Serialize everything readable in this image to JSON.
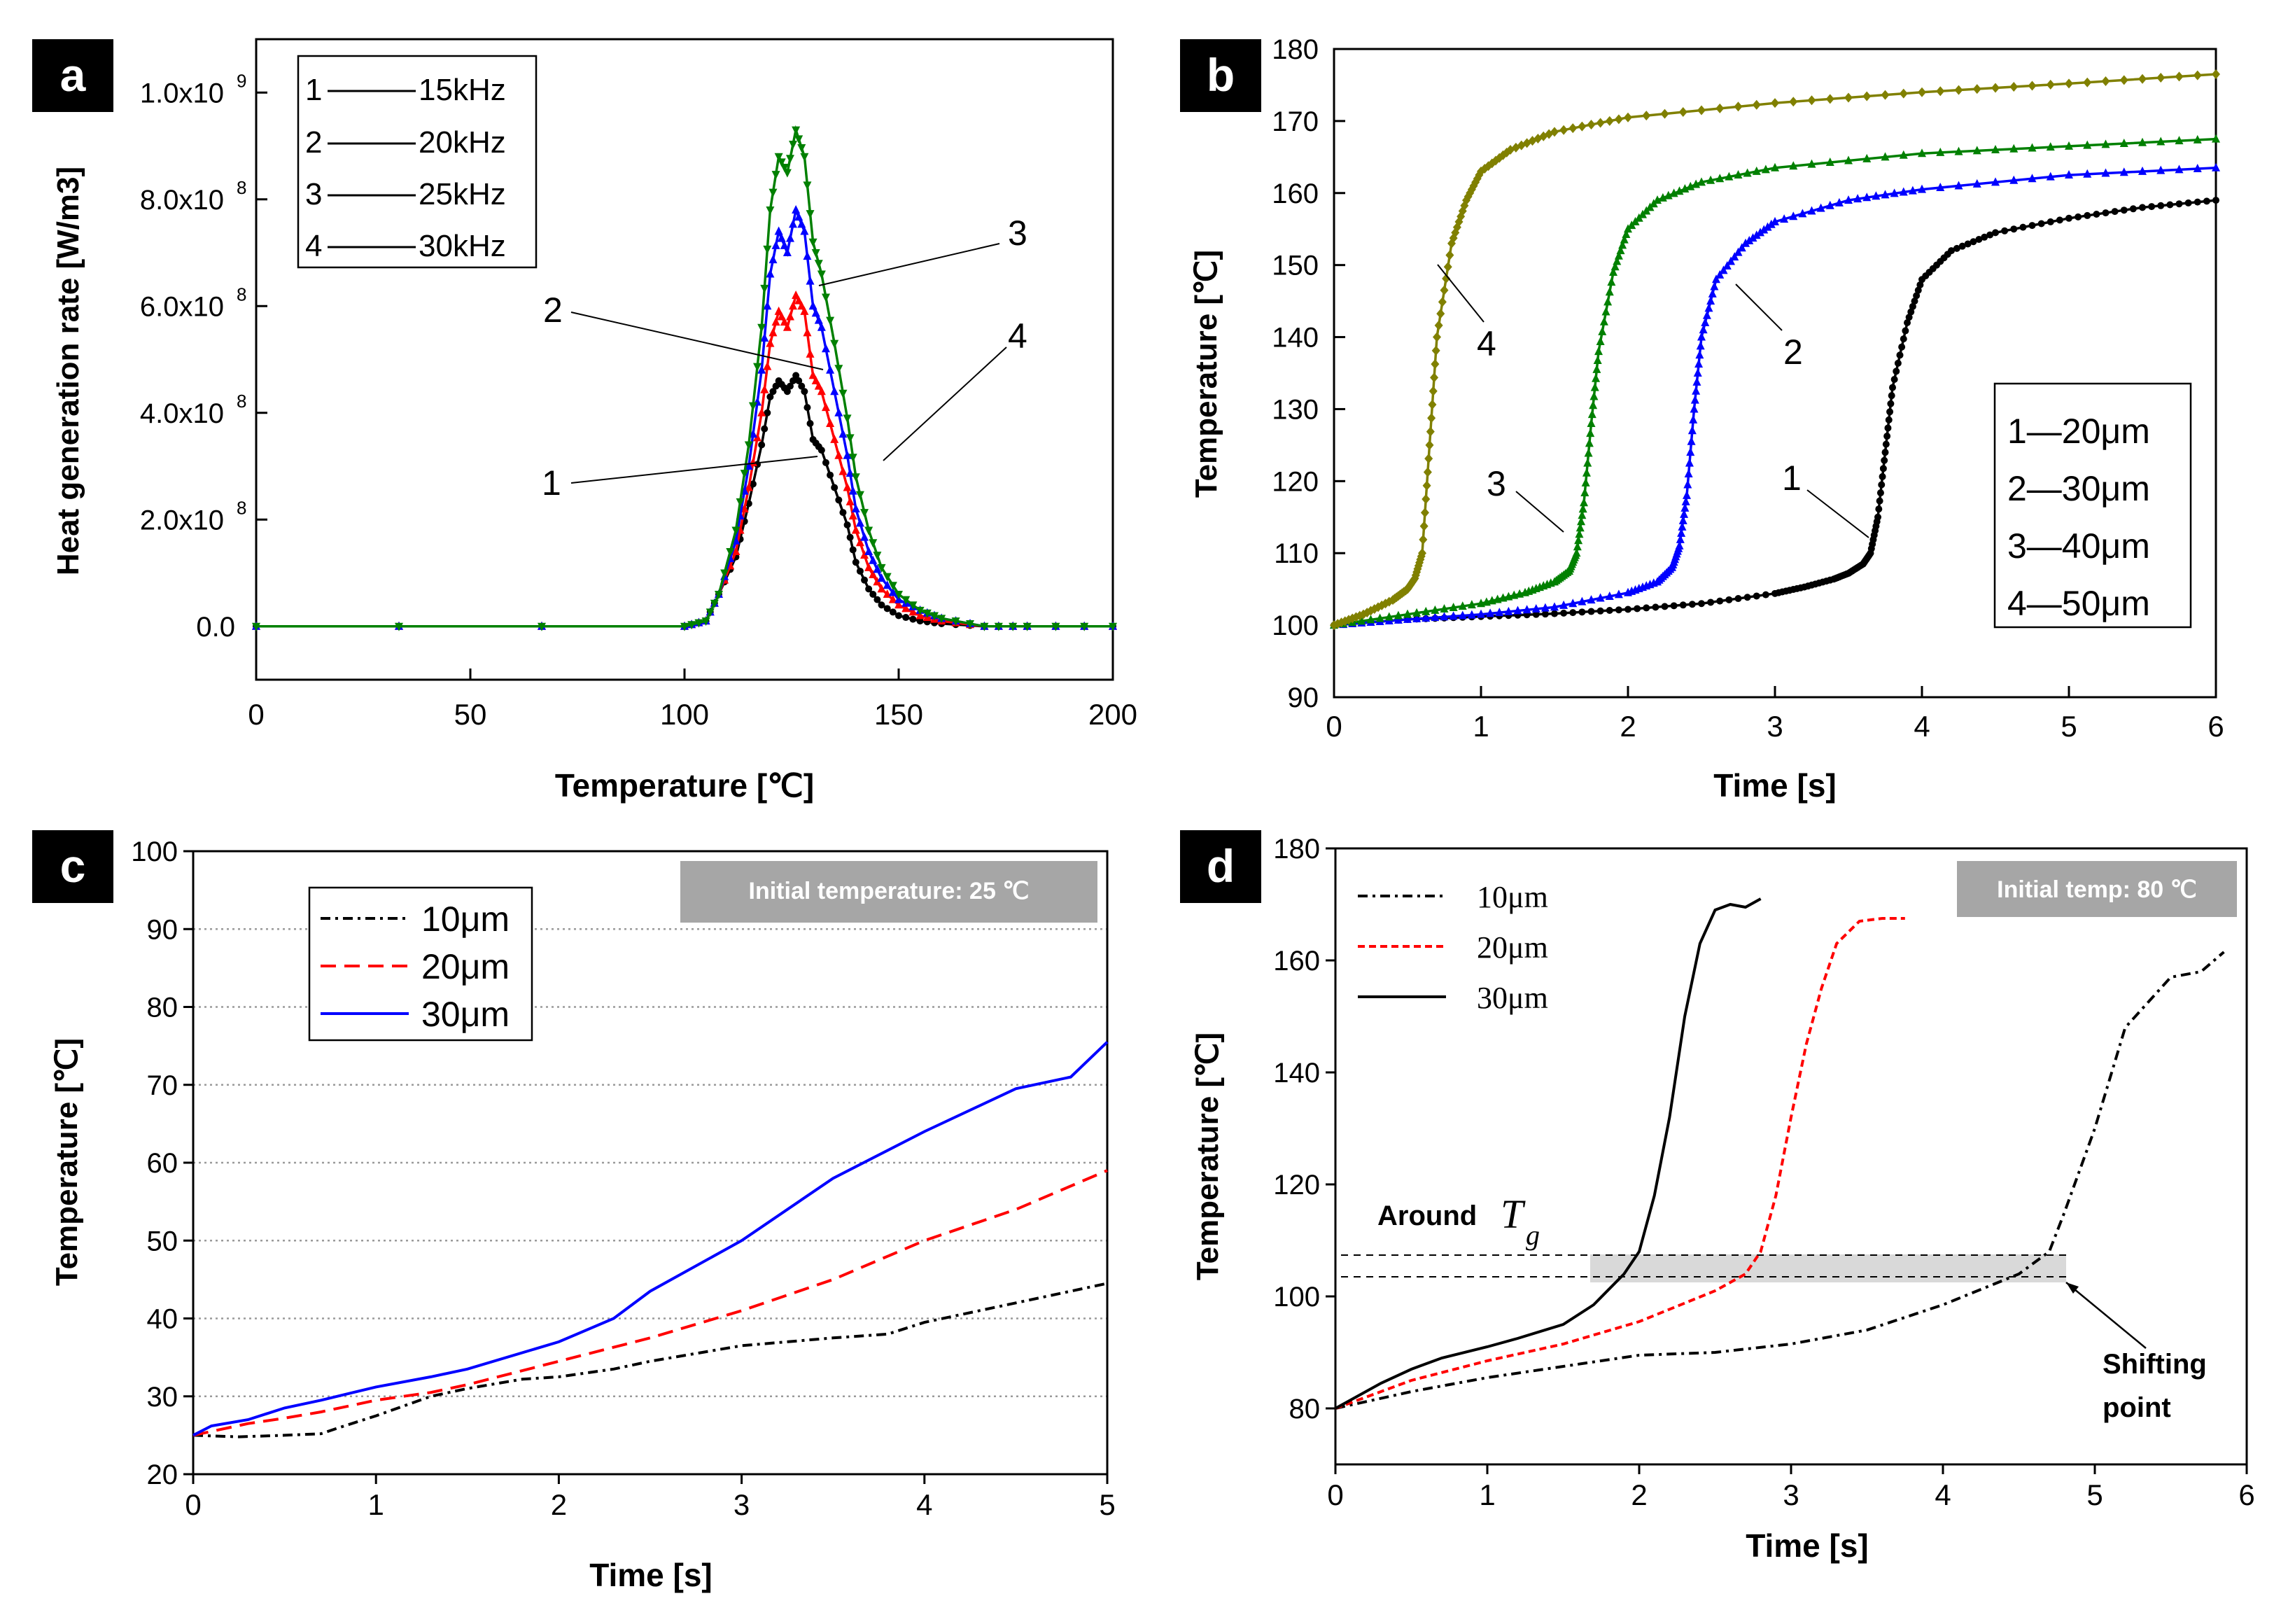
{
  "charts": [
    {
      "panel_label": "a",
      "type": "line",
      "xlabel": "Temperature [℃]",
      "ylabel": "Heat generation rate [W/m3]",
      "xlim": [
        0,
        200
      ],
      "ylim": [
        -100000000.0,
        1100000000.0
      ],
      "xticks": [
        "0",
        "50",
        "100",
        "150",
        "200"
      ],
      "yticks": [
        "0.0",
        "2.0x10",
        "4.0x10",
        "6.0x10",
        "8.0x10",
        "1.0x10"
      ],
      "ytick_exp": "8",
      "ytick_exp_top": "9",
      "legend": [
        {
          "num": "1",
          "label": "15kHz"
        },
        {
          "num": "2",
          "label": "20kHz"
        },
        {
          "num": "3",
          "label": "25kHz"
        },
        {
          "num": "4",
          "label": "30kHz"
        }
      ],
      "annotations": [
        "1",
        "2",
        "3",
        "4"
      ],
      "series_colors": [
        "#000000",
        "#ff0000",
        "#0000ff",
        "#008000"
      ]
    },
    {
      "panel_label": "b",
      "type": "line",
      "xlabel": "Time [s]",
      "ylabel": "Temperature [℃]",
      "xlim": [
        0,
        6
      ],
      "ylim": [
        90,
        180
      ],
      "xticks": [
        "0",
        "1",
        "2",
        "3",
        "4",
        "5",
        "6"
      ],
      "yticks": [
        "90",
        "100",
        "110",
        "120",
        "130",
        "140",
        "150",
        "160",
        "170",
        "180"
      ],
      "legend": [
        "1—20μm",
        "2—30μm",
        "3—40μm",
        "4—50μm"
      ],
      "annotations": [
        "1",
        "2",
        "3",
        "4"
      ],
      "series_colors": [
        "#000000",
        "#0000ff",
        "#008000",
        "#808000"
      ]
    },
    {
      "panel_label": "c",
      "type": "line",
      "xlabel": "Time [s]",
      "ylabel": "Temperature [℃]",
      "xlim": [
        0,
        5
      ],
      "ylim": [
        20,
        100
      ],
      "xticks": [
        "0",
        "1",
        "2",
        "3",
        "4",
        "5"
      ],
      "yticks": [
        "20",
        "30",
        "40",
        "50",
        "60",
        "70",
        "80",
        "90",
        "100"
      ],
      "legend": [
        "10μm",
        "20μm",
        "30μm"
      ],
      "info_box": "Initial temperature: 25 ℃",
      "series_colors": [
        "#000000",
        "#ff0000",
        "#0000ff"
      ]
    },
    {
      "panel_label": "d",
      "type": "line",
      "xlabel": "Time [s]",
      "ylabel": "Temperature [℃]",
      "xlim": [
        0,
        6
      ],
      "ylim": [
        70,
        180
      ],
      "xticks": [
        "0",
        "1",
        "2",
        "3",
        "4",
        "5",
        "6"
      ],
      "yticks": [
        "80",
        "100",
        "120",
        "140",
        "160",
        "180"
      ],
      "legend": [
        "10μm",
        "20μm",
        "30μm"
      ],
      "info_box": "Initial temp: 80 ℃",
      "tg_label_prefix": "Around",
      "tg_symbol": "T",
      "tg_subscript": "g",
      "shift_label_line1": "Shifting",
      "shift_label_line2": "point",
      "series_colors": [
        "#000000",
        "#ff0000",
        "#000000"
      ]
    }
  ],
  "chart_data": [
    {
      "panel": "a",
      "type": "line",
      "title": "",
      "xlabel": "Temperature [℃]",
      "ylabel": "Heat generation rate [W/m3]",
      "xlim": [
        0,
        200
      ],
      "ylim": [
        -100000000.0,
        1100000000.0
      ],
      "series": [
        {
          "name": "15kHz",
          "x": [
            0,
            100,
            105,
            108,
            112,
            115,
            118,
            120,
            122,
            124,
            126,
            128,
            130,
            132,
            135,
            138,
            140,
            143,
            146,
            150,
            155,
            160,
            170,
            180,
            200
          ],
          "values": [
            0,
            0,
            10000000.0,
            60000000.0,
            130000000.0,
            230000000.0,
            340000000.0,
            430000000.0,
            460000000.0,
            440000000.0,
            470000000.0,
            440000000.0,
            350000000.0,
            330000000.0,
            260000000.0,
            190000000.0,
            120000000.0,
            70000000.0,
            40000000.0,
            20000000.0,
            10000000.0,
            5000000.0,
            0,
            0,
            0
          ]
        },
        {
          "name": "20kHz",
          "x": [
            0,
            100,
            105,
            108,
            112,
            115,
            118,
            120,
            122,
            124,
            126,
            128,
            130,
            132,
            135,
            138,
            140,
            143,
            146,
            150,
            155,
            160,
            170,
            180,
            200
          ],
          "values": [
            0,
            0,
            10000000.0,
            60000000.0,
            140000000.0,
            260000000.0,
            400000000.0,
            530000000.0,
            590000000.0,
            560000000.0,
            620000000.0,
            590000000.0,
            470000000.0,
            440000000.0,
            350000000.0,
            260000000.0,
            180000000.0,
            110000000.0,
            70000000.0,
            40000000.0,
            20000000.0,
            10000000.0,
            0,
            0,
            0
          ]
        },
        {
          "name": "25kHz",
          "x": [
            0,
            100,
            105,
            108,
            112,
            115,
            118,
            120,
            122,
            124,
            126,
            128,
            130,
            132,
            135,
            138,
            140,
            143,
            146,
            150,
            155,
            160,
            170,
            180,
            200
          ],
          "values": [
            0,
            0,
            10000000.0,
            60000000.0,
            160000000.0,
            300000000.0,
            480000000.0,
            660000000.0,
            740000000.0,
            700000000.0,
            780000000.0,
            740000000.0,
            600000000.0,
            560000000.0,
            440000000.0,
            320000000.0,
            220000000.0,
            140000000.0,
            90000000.0,
            50000000.0,
            30000000.0,
            15000000.0,
            0,
            0,
            0
          ]
        },
        {
          "name": "30kHz",
          "x": [
            0,
            100,
            105,
            108,
            112,
            115,
            118,
            120,
            122,
            124,
            126,
            128,
            130,
            132,
            135,
            138,
            140,
            143,
            146,
            150,
            155,
            160,
            170,
            180,
            200
          ],
          "values": [
            0,
            0,
            10000000.0,
            60000000.0,
            180000000.0,
            340000000.0,
            560000000.0,
            780000000.0,
            880000000.0,
            850000000.0,
            930000000.0,
            880000000.0,
            720000000.0,
            660000000.0,
            530000000.0,
            390000000.0,
            280000000.0,
            180000000.0,
            110000000.0,
            60000000.0,
            30000000.0,
            15000000.0,
            0,
            0,
            0
          ]
        }
      ]
    },
    {
      "panel": "b",
      "type": "line",
      "title": "",
      "xlabel": "Time [s]",
      "ylabel": "Temperature [℃]",
      "xlim": [
        0,
        6
      ],
      "ylim": [
        90,
        180
      ],
      "series": [
        {
          "name": "1—20μm",
          "x": [
            0,
            0.5,
            1,
            1.5,
            2,
            2.5,
            3,
            3.2,
            3.4,
            3.5,
            3.6,
            3.65,
            3.7,
            3.75,
            3.8,
            3.9,
            4,
            4.2,
            4.5,
            5,
            5.5,
            6
          ],
          "values": [
            100,
            100.8,
            101.2,
            101.6,
            102.2,
            103,
            104.4,
            105.3,
            106.4,
            107.2,
            108.5,
            110,
            115,
            124,
            133,
            142,
            148,
            152,
            154.5,
            156.5,
            158,
            159
          ]
        },
        {
          "name": "2—30μm",
          "x": [
            0,
            0.5,
            1,
            1.5,
            2,
            2.2,
            2.3,
            2.35,
            2.4,
            2.45,
            2.5,
            2.6,
            2.8,
            3,
            3.5,
            4,
            5,
            6
          ],
          "values": [
            100,
            100.8,
            101.5,
            102.5,
            104.5,
            106,
            108,
            111,
            118,
            130,
            140,
            148,
            153,
            156,
            159,
            160.5,
            162.5,
            163.5
          ]
        },
        {
          "name": "3—40μm",
          "x": [
            0,
            0.5,
            1,
            1.3,
            1.5,
            1.6,
            1.65,
            1.7,
            1.75,
            1.8,
            1.9,
            2,
            2.2,
            2.5,
            3,
            4,
            5,
            6
          ],
          "values": [
            100,
            101.5,
            103,
            104.5,
            106,
            107.5,
            110,
            117,
            128,
            138,
            149,
            155,
            159,
            161.5,
            163.5,
            165.5,
            166.5,
            167.5
          ]
        },
        {
          "name": "4—50μm",
          "x": [
            0,
            0.2,
            0.4,
            0.5,
            0.55,
            0.6,
            0.65,
            0.7,
            0.8,
            0.9,
            1,
            1.2,
            1.5,
            2,
            3,
            4,
            5,
            6
          ],
          "values": [
            100,
            101.5,
            103.5,
            105,
            106.5,
            110,
            125,
            140,
            153,
            159,
            163,
            166,
            168.5,
            170.5,
            172.5,
            174,
            175.2,
            176.5
          ]
        }
      ]
    },
    {
      "panel": "c",
      "type": "line",
      "title": "",
      "xlabel": "Time [s]",
      "ylabel": "Temperature [℃]",
      "xlim": [
        0,
        5
      ],
      "ylim": [
        20,
        100
      ],
      "series": [
        {
          "name": "10μm",
          "x": [
            0,
            0.25,
            0.5,
            0.7,
            0.8,
            1,
            1.3,
            1.5,
            1.8,
            2,
            2.3,
            2.5,
            3,
            3.5,
            3.8,
            4,
            4.5,
            5
          ],
          "values": [
            25,
            24.8,
            25,
            25.2,
            26,
            27.5,
            30,
            31,
            32.2,
            32.5,
            33.5,
            34.5,
            36.5,
            37.5,
            38,
            39.5,
            42,
            44.5
          ]
        },
        {
          "name": "20μm",
          "x": [
            0,
            0.3,
            0.5,
            0.7,
            1,
            1.3,
            1.5,
            2,
            2.5,
            3,
            3.5,
            4,
            4.5,
            5
          ],
          "values": [
            25,
            26.5,
            27.2,
            28,
            29.5,
            30.5,
            31.5,
            34.5,
            37.5,
            41,
            45,
            50,
            54,
            59
          ]
        },
        {
          "name": "30μm",
          "x": [
            0,
            0.1,
            0.3,
            0.5,
            0.7,
            1,
            1.3,
            1.5,
            2,
            2.3,
            2.5,
            3,
            3.5,
            4,
            4.5,
            4.8,
            5
          ],
          "values": [
            25,
            26.2,
            27,
            28.5,
            29.5,
            31.2,
            32.5,
            33.5,
            37,
            40,
            43.5,
            50,
            58,
            64,
            69.5,
            71,
            75.5
          ]
        }
      ]
    },
    {
      "panel": "d",
      "type": "line",
      "title": "",
      "xlabel": "Time [s]",
      "ylabel": "Temperature [℃]",
      "xlim": [
        0,
        6
      ],
      "ylim": [
        70,
        180
      ],
      "series": [
        {
          "name": "10μm",
          "x": [
            0,
            0.5,
            1,
            1.5,
            2,
            2.5,
            3,
            3.5,
            4,
            4.5,
            4.7,
            4.8,
            5,
            5.2,
            5.5,
            5.7,
            5.85
          ],
          "values": [
            80,
            83,
            85.5,
            87.5,
            89.5,
            90,
            91.5,
            94,
            98.5,
            104,
            108,
            115,
            130,
            148,
            157,
            158,
            161.5
          ]
        },
        {
          "name": "20μm",
          "x": [
            0,
            0.5,
            1,
            1.5,
            2,
            2.5,
            2.7,
            2.8,
            2.9,
            3,
            3.1,
            3.2,
            3.3,
            3.45,
            3.6,
            3.75
          ],
          "values": [
            80,
            85,
            88.5,
            91.5,
            95.5,
            101,
            104,
            108,
            118,
            132,
            145,
            155,
            163,
            167,
            167.5,
            167.5
          ]
        },
        {
          "name": "30μm",
          "x": [
            0,
            0.3,
            0.5,
            0.7,
            1,
            1.2,
            1.5,
            1.7,
            1.9,
            2,
            2.1,
            2.2,
            2.3,
            2.4,
            2.5,
            2.6,
            2.7,
            2.8
          ],
          "values": [
            80,
            84.5,
            87,
            89,
            91,
            92.5,
            95,
            98.5,
            104,
            108,
            118,
            132,
            150,
            163,
            169,
            170,
            169.5,
            171
          ]
        }
      ]
    }
  ]
}
